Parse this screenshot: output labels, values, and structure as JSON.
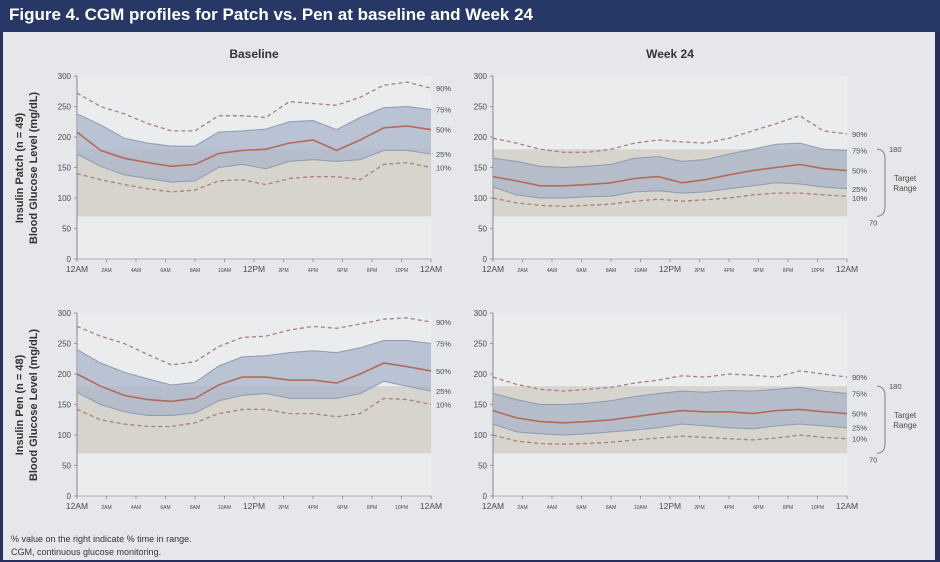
{
  "figure_title": "Figure 4. CGM profiles for Patch vs. Pen at baseline and Week 24",
  "footnotes": [
    "% value on the right indicate % time in range.",
    "CGM, continuous glucose monitoring."
  ],
  "colors": {
    "title_bar": "#273766",
    "panel_bg": "#e6e7ea",
    "target_band": "#d2d0c6",
    "iqr_band": "#a9b5cb",
    "median_line": "#b5695a",
    "percentile_dashed": "#a97f78",
    "axis_text": "#4a4a4a"
  },
  "chart_data": [
    {
      "type": "area",
      "panel": "patch-baseline",
      "title": "Baseline",
      "row_label": "Insulin Patch (n = 49)",
      "ylabel": "Blood Glucose Level (mg/dL)",
      "ylim": [
        0,
        300
      ],
      "yticks": [
        0,
        50,
        100,
        150,
        200,
        250,
        300
      ],
      "xticks": [
        "12AM",
        "2AM",
        "4AM",
        "6AM",
        "8AM",
        "10AM",
        "12PM",
        "2PM",
        "4PM",
        "6PM",
        "8PM",
        "10PM",
        "12AM"
      ],
      "target_range": [
        70,
        180
      ],
      "series": [
        {
          "name": "90%",
          "values": [
            272,
            250,
            238,
            222,
            210,
            210,
            235,
            235,
            232,
            258,
            255,
            252,
            265,
            285,
            290,
            280
          ]
        },
        {
          "name": "75%",
          "values": [
            238,
            220,
            198,
            190,
            185,
            185,
            208,
            210,
            213,
            225,
            227,
            212,
            232,
            248,
            250,
            245
          ]
        },
        {
          "name": "50%",
          "values": [
            208,
            178,
            165,
            158,
            152,
            155,
            173,
            178,
            180,
            190,
            195,
            178,
            195,
            215,
            218,
            212
          ]
        },
        {
          "name": "25%",
          "values": [
            172,
            152,
            138,
            132,
            126,
            128,
            150,
            155,
            148,
            160,
            163,
            160,
            163,
            178,
            178,
            172
          ]
        },
        {
          "name": "10%",
          "values": [
            140,
            130,
            122,
            115,
            110,
            113,
            128,
            130,
            122,
            132,
            135,
            135,
            130,
            155,
            158,
            150
          ]
        }
      ]
    },
    {
      "type": "area",
      "panel": "patch-week24",
      "title": "Week 24",
      "ylim": [
        0,
        300
      ],
      "yticks": [
        0,
        50,
        100,
        150,
        200,
        250,
        300
      ],
      "xticks": [
        "12AM",
        "2AM",
        "4AM",
        "6AM",
        "8AM",
        "10AM",
        "12PM",
        "2PM",
        "4PM",
        "6PM",
        "8PM",
        "10PM",
        "12AM"
      ],
      "target_range": [
        70,
        180
      ],
      "range_label": [
        "Target",
        "Range"
      ],
      "series": [
        {
          "name": "90%",
          "values": [
            198,
            190,
            180,
            175,
            175,
            180,
            190,
            195,
            192,
            190,
            198,
            210,
            222,
            235,
            210,
            205
          ]
        },
        {
          "name": "75%",
          "values": [
            165,
            160,
            152,
            150,
            152,
            155,
            165,
            168,
            160,
            163,
            172,
            180,
            188,
            190,
            180,
            178
          ]
        },
        {
          "name": "50%",
          "values": [
            135,
            128,
            120,
            120,
            122,
            125,
            132,
            135,
            125,
            130,
            138,
            145,
            150,
            155,
            148,
            145
          ]
        },
        {
          "name": "25%",
          "values": [
            118,
            105,
            100,
            100,
            102,
            103,
            110,
            112,
            108,
            110,
            115,
            120,
            125,
            123,
            118,
            115
          ]
        },
        {
          "name": "10%",
          "values": [
            100,
            92,
            88,
            86,
            88,
            90,
            95,
            98,
            95,
            97,
            100,
            105,
            108,
            108,
            105,
            103
          ]
        }
      ],
      "percent_labels": [
        "90%",
        "75%",
        "50%",
        "25%",
        "10%"
      ],
      "range_bounds": [
        "180",
        "70"
      ]
    },
    {
      "type": "area",
      "panel": "pen-baseline",
      "title": "",
      "row_label": "Insulin Pen (n = 48)",
      "ylabel": "Blood Glucose Level (mg/dL)",
      "ylim": [
        0,
        300
      ],
      "yticks": [
        0,
        50,
        100,
        150,
        200,
        250,
        300
      ],
      "xticks": [
        "12AM",
        "2AM",
        "4AM",
        "6AM",
        "8AM",
        "10AM",
        "12PM",
        "2PM",
        "4PM",
        "6PM",
        "8PM",
        "10PM",
        "12AM"
      ],
      "target_range": [
        70,
        180
      ],
      "series": [
        {
          "name": "90%",
          "values": [
            278,
            262,
            250,
            232,
            215,
            220,
            245,
            260,
            262,
            272,
            278,
            275,
            282,
            290,
            292,
            285
          ]
        },
        {
          "name": "75%",
          "values": [
            240,
            218,
            203,
            192,
            182,
            186,
            213,
            228,
            230,
            235,
            238,
            235,
            243,
            255,
            255,
            250
          ]
        },
        {
          "name": "50%",
          "values": [
            200,
            180,
            165,
            158,
            155,
            160,
            182,
            195,
            195,
            190,
            190,
            185,
            200,
            218,
            212,
            205
          ]
        },
        {
          "name": "25%",
          "values": [
            170,
            150,
            138,
            132,
            132,
            136,
            156,
            165,
            168,
            160,
            160,
            160,
            168,
            188,
            180,
            172
          ]
        },
        {
          "name": "10%",
          "values": [
            142,
            125,
            118,
            114,
            114,
            120,
            135,
            142,
            142,
            135,
            135,
            130,
            135,
            160,
            158,
            150
          ]
        }
      ]
    },
    {
      "type": "area",
      "panel": "pen-week24",
      "title": "",
      "ylim": [
        0,
        300
      ],
      "yticks": [
        0,
        50,
        100,
        150,
        200,
        250,
        300
      ],
      "xticks": [
        "12AM",
        "2AM",
        "4AM",
        "6AM",
        "8AM",
        "10AM",
        "12PM",
        "2PM",
        "4PM",
        "6PM",
        "8PM",
        "10PM",
        "12AM"
      ],
      "target_range": [
        70,
        180
      ],
      "range_label": [
        "Target",
        "Range"
      ],
      "series": [
        {
          "name": "90%",
          "values": [
            195,
            183,
            175,
            172,
            175,
            178,
            185,
            190,
            197,
            195,
            200,
            198,
            195,
            205,
            200,
            195
          ]
        },
        {
          "name": "75%",
          "values": [
            168,
            158,
            150,
            150,
            152,
            156,
            163,
            168,
            172,
            170,
            173,
            172,
            175,
            178,
            172,
            168
          ]
        },
        {
          "name": "50%",
          "values": [
            140,
            128,
            122,
            120,
            122,
            125,
            130,
            135,
            140,
            138,
            138,
            135,
            140,
            142,
            138,
            135
          ]
        },
        {
          "name": "25%",
          "values": [
            118,
            105,
            102,
            100,
            102,
            105,
            108,
            112,
            118,
            115,
            112,
            110,
            115,
            118,
            115,
            112
          ]
        },
        {
          "name": "10%",
          "values": [
            100,
            90,
            86,
            85,
            86,
            88,
            92,
            95,
            98,
            96,
            94,
            92,
            95,
            100,
            96,
            94
          ]
        }
      ],
      "percent_labels": [
        "90%",
        "75%",
        "50%",
        "25%",
        "10%"
      ],
      "range_bounds": [
        "180",
        "70"
      ]
    }
  ]
}
